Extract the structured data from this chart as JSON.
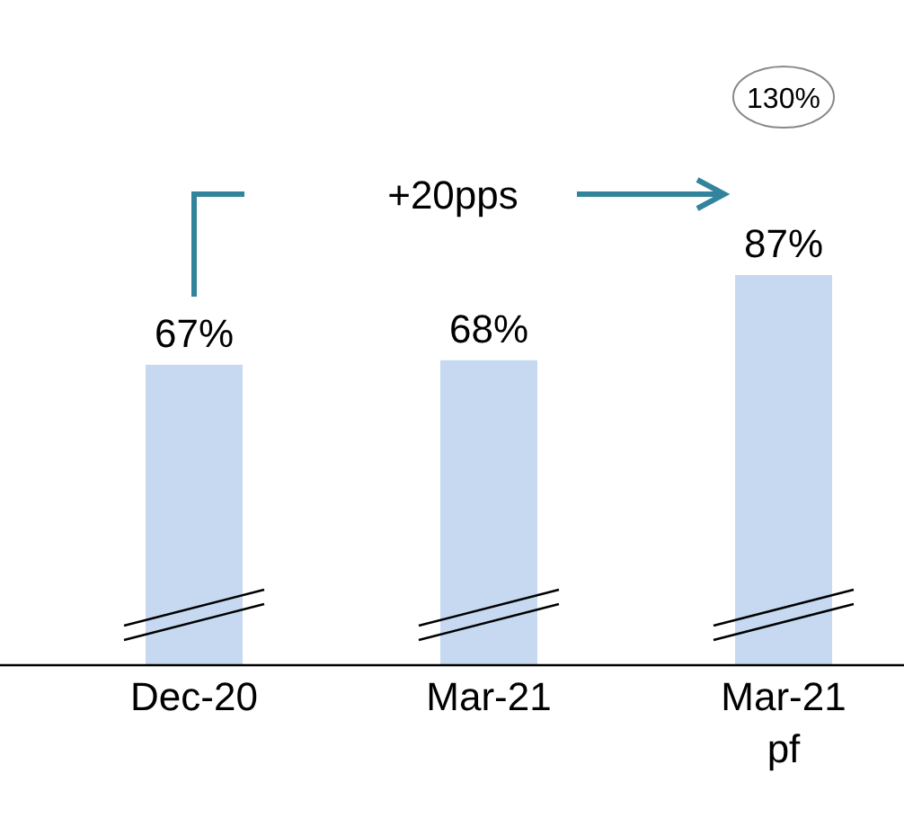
{
  "chart_data": {
    "type": "bar",
    "categories": [
      "Dec-20",
      "Mar-21",
      "Mar-21 pf"
    ],
    "values": [
      67,
      68,
      87
    ],
    "color": "#c6d9f1",
    "value_labels": [
      "67%",
      "68%",
      "87%"
    ],
    "annotations": [
      "+20pps",
      "130%"
    ]
  }
}
